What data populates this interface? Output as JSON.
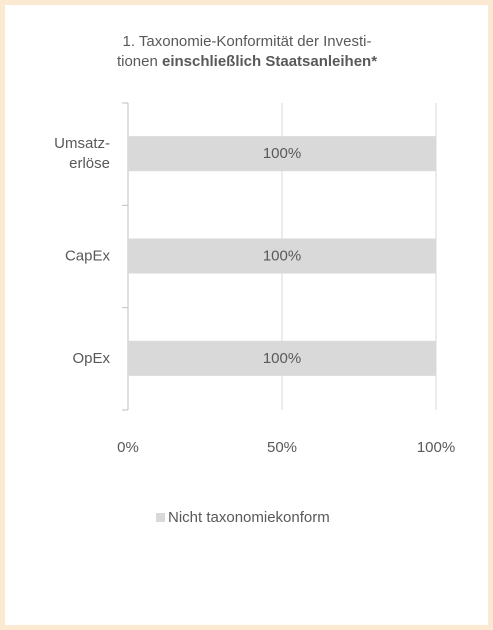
{
  "chart_data": {
    "type": "barh",
    "title": [
      "1. Taxonomie-Konformität der Investi-",
      "tionen"
    ],
    "title_emphasis": "einschließlich Staatsanleihen*",
    "categories": [
      [
        "Umsatz-",
        "erlöse"
      ],
      [
        "CapEx"
      ],
      [
        "OpEx"
      ]
    ],
    "series": [
      {
        "name": "Nicht taxonomiekonform",
        "color": "#d9d9d9",
        "values": [
          100,
          100,
          100
        ],
        "value_labels": [
          "100%",
          "100%",
          "100%"
        ]
      }
    ],
    "xlim": [
      0,
      100
    ],
    "xticks": [
      {
        "value": 0,
        "label": "0%"
      },
      {
        "value": 50,
        "label": "50%"
      },
      {
        "value": 100,
        "label": "100%"
      }
    ],
    "grid": true,
    "legend": "bottom"
  }
}
